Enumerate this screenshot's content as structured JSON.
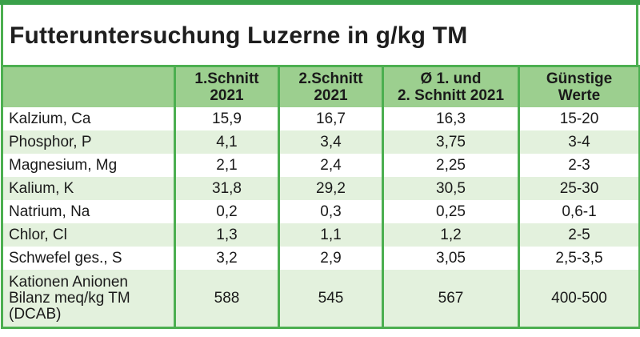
{
  "title": "Futteruntersuchung Luzerne in g/kg TM",
  "table": {
    "headers": [
      {
        "line1": "",
        "line2": ""
      },
      {
        "line1": "1.Schnitt",
        "line2": "2021"
      },
      {
        "line1": "2.Schnitt",
        "line2": "2021"
      },
      {
        "line1": "Ø 1. und",
        "line2": "2. Schnitt 2021"
      },
      {
        "line1": "Günstige",
        "line2": "Werte"
      }
    ],
    "rows": [
      {
        "label": "Kalzium, Ca",
        "cut1": "15,9",
        "cut2": "16,7",
        "avg": "16,3",
        "target": "15-20"
      },
      {
        "label": "Phosphor, P",
        "cut1": "4,1",
        "cut2": "3,4",
        "avg": "3,75",
        "target": "3-4"
      },
      {
        "label": "Magnesium, Mg",
        "cut1": "2,1",
        "cut2": "2,4",
        "avg": "2,25",
        "target": "2-3"
      },
      {
        "label": "Kalium, K",
        "cut1": "31,8",
        "cut2": "29,2",
        "avg": "30,5",
        "target": "25-30"
      },
      {
        "label": "Natrium, Na",
        "cut1": "0,2",
        "cut2": "0,3",
        "avg": "0,25",
        "target": "0,6-1"
      },
      {
        "label": "Chlor, Cl",
        "cut1": "1,3",
        "cut2": "1,1",
        "avg": "1,2",
        "target": "2-5"
      },
      {
        "label": "Schwefel ges., S",
        "cut1": "3,2",
        "cut2": "2,9",
        "avg": "3,05",
        "target": "2,5-3,5"
      }
    ],
    "dcab_row": {
      "label_line1": "Kationen Anionen",
      "label_line2": "Bilanz meq/kg TM",
      "label_line3": "(DCAB)",
      "cut1": "588",
      "cut2": "545",
      "avg": "567",
      "target": "400-500"
    }
  },
  "colors": {
    "accent_green": "#4caf50",
    "header_fill": "#9ccf8f",
    "row_tint": "#e3f1dd"
  }
}
